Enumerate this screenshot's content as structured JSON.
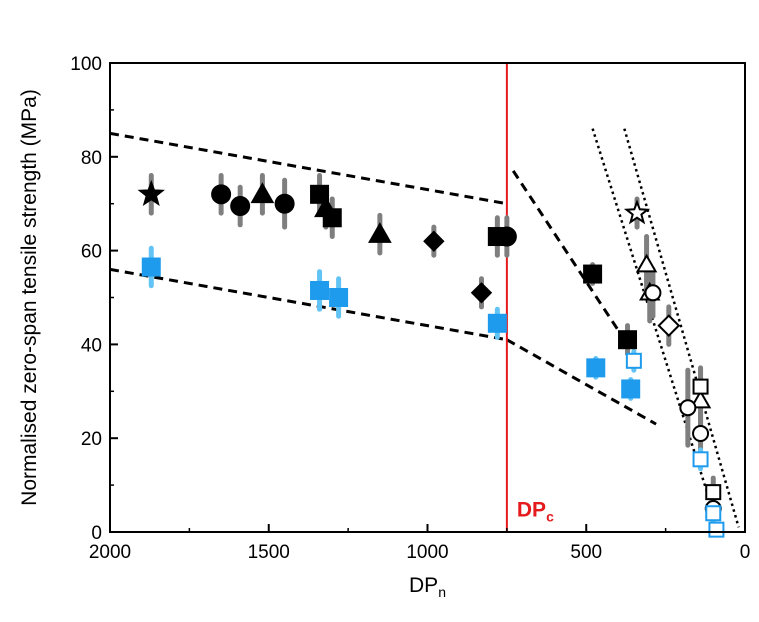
{
  "chart_data": {
    "type": "scatter",
    "title": "",
    "xlabel": "DP",
    "xlabel_sub": "n",
    "ylabel": "Normalised zero-span tensile strength (MPa)",
    "xlim": [
      2000,
      0
    ],
    "ylim": [
      0,
      100
    ],
    "x_ticks": [
      "2000",
      "1500",
      "1000",
      "500",
      "0"
    ],
    "y_ticks": [
      "0",
      "20",
      "40",
      "60",
      "80",
      "100"
    ],
    "x_reversed": true,
    "grid": false,
    "legend": "none",
    "colors": {
      "black": "#000000",
      "blue": "#1e9bed",
      "light_blue": "#62c3f5",
      "gray": "#7f7f7f",
      "red": "#e41a1c"
    },
    "annotations": [
      {
        "text": "DP",
        "sub": "c",
        "x": 750,
        "y": 2,
        "color": "#e41a1c"
      }
    ],
    "vline": {
      "x": 750,
      "color": "#e41a1c"
    },
    "series": [
      {
        "marker": "star",
        "fill": "filled",
        "color": "#000000",
        "points": [
          {
            "x": 1870,
            "y": 72,
            "err": 4
          }
        ]
      },
      {
        "marker": "circle",
        "fill": "filled",
        "color": "#000000",
        "points": [
          {
            "x": 1650,
            "y": 72,
            "err": 4
          },
          {
            "x": 1590,
            "y": 69.5,
            "err": 4
          },
          {
            "x": 1450,
            "y": 70,
            "err": 5
          },
          {
            "x": 750,
            "y": 63,
            "err": 4
          }
        ]
      },
      {
        "marker": "triangle",
        "fill": "filled",
        "color": "#000000",
        "points": [
          {
            "x": 1520,
            "y": 72,
            "err": 4
          },
          {
            "x": 1320,
            "y": 69,
            "err": 4
          },
          {
            "x": 1150,
            "y": 63.5,
            "err": 4
          }
        ]
      },
      {
        "marker": "square",
        "fill": "filled",
        "color": "#000000",
        "points": [
          {
            "x": 1340,
            "y": 72,
            "err": 4
          },
          {
            "x": 1300,
            "y": 67,
            "err": 4
          },
          {
            "x": 780,
            "y": 63,
            "err": 4
          },
          {
            "x": 480,
            "y": 55,
            "err": 2
          },
          {
            "x": 370,
            "y": 41,
            "err": 3
          }
        ]
      },
      {
        "marker": "diamond",
        "fill": "filled",
        "color": "#000000",
        "points": [
          {
            "x": 980,
            "y": 62,
            "err": 3
          },
          {
            "x": 830,
            "y": 51,
            "err": 3
          }
        ]
      },
      {
        "marker": "square",
        "fill": "filled",
        "color": "#1e9bed",
        "points": [
          {
            "x": 1870,
            "y": 56.5,
            "err": 4
          },
          {
            "x": 1340,
            "y": 51.5,
            "err": 4
          },
          {
            "x": 1280,
            "y": 50,
            "err": 4
          },
          {
            "x": 780,
            "y": 44.5,
            "err": 3
          },
          {
            "x": 470,
            "y": 35,
            "err": 2
          },
          {
            "x": 360,
            "y": 30.5,
            "err": 2
          }
        ]
      },
      {
        "marker": "star",
        "fill": "open",
        "color": "#000000",
        "points": [
          {
            "x": 340,
            "y": 68,
            "err": 3
          }
        ]
      },
      {
        "marker": "triangle",
        "fill": "open",
        "color": "#000000",
        "points": [
          {
            "x": 310,
            "y": 57,
            "err": 6
          },
          {
            "x": 300,
            "y": 51,
            "err": 6
          },
          {
            "x": 140,
            "y": 28,
            "err": 5
          }
        ]
      },
      {
        "marker": "circle",
        "fill": "open",
        "color": "#000000",
        "points": [
          {
            "x": 290,
            "y": 51,
            "err": 5
          },
          {
            "x": 180,
            "y": 26.5,
            "err": 8
          },
          {
            "x": 140,
            "y": 21,
            "err": 4
          },
          {
            "x": 100,
            "y": 5,
            "err": 3
          }
        ]
      },
      {
        "marker": "diamond",
        "fill": "open",
        "color": "#000000",
        "points": [
          {
            "x": 240,
            "y": 44,
            "err": 4
          }
        ]
      },
      {
        "marker": "square",
        "fill": "open",
        "color": "#000000",
        "points": [
          {
            "x": 140,
            "y": 31,
            "err": 4
          },
          {
            "x": 100,
            "y": 8.5,
            "err": 3
          }
        ]
      },
      {
        "marker": "square",
        "fill": "open",
        "color": "#1e9bed",
        "points": [
          {
            "x": 350,
            "y": 36.5,
            "err": 2
          },
          {
            "x": 140,
            "y": 15.5,
            "err": 2
          },
          {
            "x": 100,
            "y": 4,
            "err": 2
          },
          {
            "x": 90,
            "y": 0.5,
            "err": 1
          }
        ]
      }
    ],
    "trend_lines": [
      {
        "style": "dashed",
        "points": [
          [
            2000,
            85
          ],
          [
            750,
            70
          ]
        ]
      },
      {
        "style": "dashed",
        "points": [
          [
            2000,
            56
          ],
          [
            750,
            41
          ]
        ]
      },
      {
        "style": "dashed",
        "points": [
          [
            730,
            77
          ],
          [
            370,
            40
          ]
        ]
      },
      {
        "style": "dashed",
        "points": [
          [
            750,
            41
          ],
          [
            280,
            23
          ]
        ]
      },
      {
        "style": "dotted",
        "points": [
          [
            480,
            86
          ],
          [
            80,
            0
          ]
        ]
      },
      {
        "style": "dotted",
        "points": [
          [
            380,
            86
          ],
          [
            20,
            1
          ]
        ]
      }
    ]
  }
}
